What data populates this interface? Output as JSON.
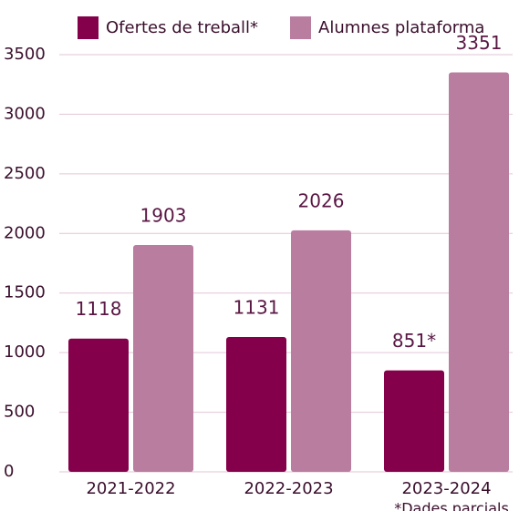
{
  "chart_data": {
    "type": "bar",
    "categories": [
      "2021-2022",
      "2022-2023",
      "2023-2024"
    ],
    "series": [
      {
        "name": "Ofertes de treball*",
        "color": "#85004b",
        "values": [
          1118,
          1131,
          851
        ],
        "value_labels": [
          "1118",
          "1131",
          "851*"
        ]
      },
      {
        "name": "Alumnes plataforma",
        "color": "#b97da0",
        "values": [
          1903,
          2026,
          3351
        ]
      }
    ],
    "ylim": [
      0,
      3500
    ],
    "yticks": [
      0,
      500,
      1000,
      1500,
      2000,
      2500,
      3000,
      3500
    ],
    "grid": true,
    "legend": "top",
    "footnote": "*Dades parcials"
  }
}
